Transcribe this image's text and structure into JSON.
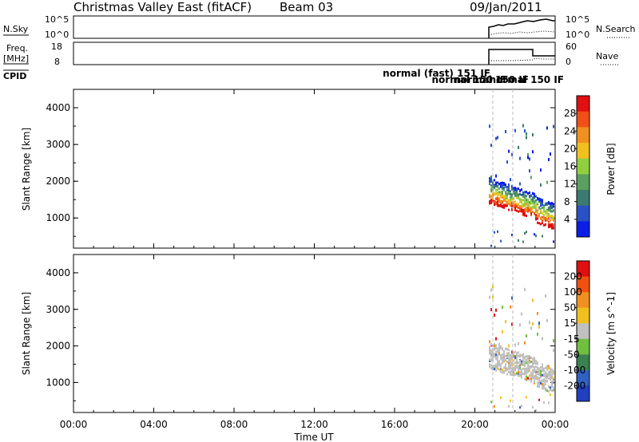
{
  "header": {
    "title": "Christmas Valley East (fitACF)",
    "beam": "Beam 03",
    "date": "09/Jan/2011"
  },
  "nsky_panel": {
    "label": "N.Sky",
    "ticks": [
      "10^5",
      "10^0"
    ],
    "right_label": "N.Search",
    "right_ticks": [
      "10^5",
      "10^0"
    ]
  },
  "freq_panel": {
    "label_line1": "Freq.",
    "label_line2": "[MHz]",
    "ticks": [
      "18",
      "8"
    ],
    "right_label": "Nave",
    "right_ticks": [
      "60",
      "0"
    ]
  },
  "cpid": {
    "label": "CPID",
    "modes": [
      "normal (fast) 151 IF",
      "normal 150 IF",
      "normal 150 IF",
      "normal 150 IF"
    ]
  },
  "chart_data": [
    {
      "type": "heatmap",
      "name": "power",
      "ylabel": "Slant Range [km]",
      "yticks": [
        1000,
        2000,
        3000,
        4000
      ],
      "ylim": [
        180,
        4500
      ],
      "colorbar_label": "Power [dB]",
      "colorbar_ticks": [
        "28",
        "24",
        "20",
        "16",
        "12",
        "8",
        "4"
      ],
      "colors": [
        "#0a1ee6",
        "#2a52c4",
        "#3a7a70",
        "#5aa060",
        "#90d040",
        "#f0c020",
        "#f09020",
        "#f05018",
        "#e01010"
      ]
    },
    {
      "type": "heatmap",
      "name": "velocity",
      "ylabel": "Slant Range [km]",
      "yticks": [
        1000,
        2000,
        3000,
        4000
      ],
      "ylim": [
        180,
        4500
      ],
      "colorbar_label": "Velocity [m s^-1]",
      "colorbar_ticks": [
        "200",
        "100",
        "50",
        "15",
        "-15",
        "-50",
        "-100",
        "-200"
      ],
      "colors": [
        "#2040c0",
        "#3060c0",
        "#3a8050",
        "#70c040",
        "#c0c0c0",
        "#f0c020",
        "#f09020",
        "#f05010",
        "#e01010"
      ]
    }
  ],
  "time_axis": {
    "label": "Time UT",
    "ticks": [
      "00:00",
      "04:00",
      "08:00",
      "12:00",
      "16:00",
      "20:00",
      "00:00"
    ]
  }
}
